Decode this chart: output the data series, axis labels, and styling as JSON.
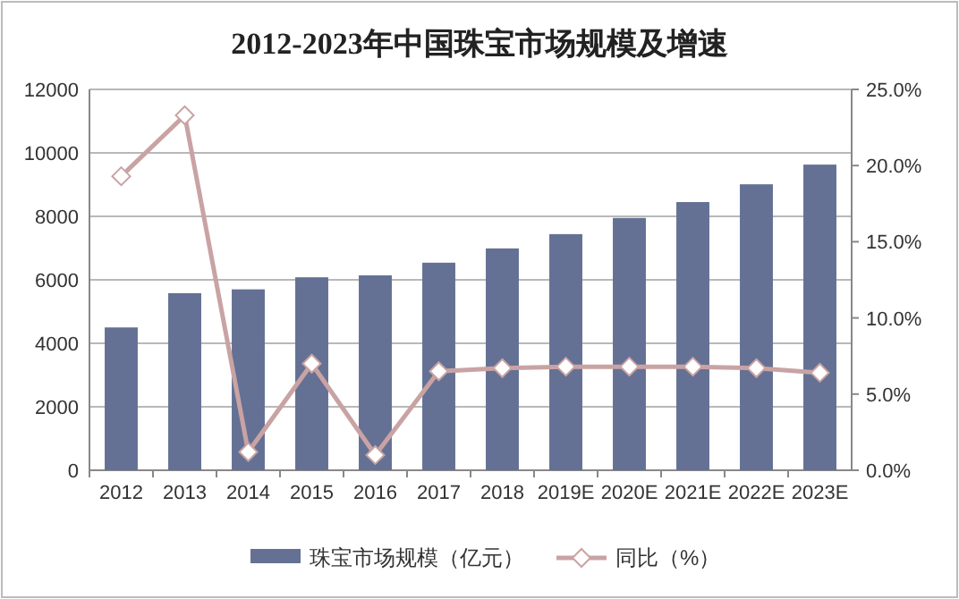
{
  "chart_data": {
    "type": "bar",
    "title": "2012-2023年中国珠宝市场规模及增速",
    "categories": [
      "2012",
      "2013",
      "2014",
      "2015",
      "2016",
      "2017",
      "2018",
      "2019E",
      "2020E",
      "2021E",
      "2022E",
      "2023E"
    ],
    "series": [
      {
        "name": "珠宝市场规模（亿元）",
        "color": "#647194",
        "values": [
          4500,
          5580,
          5700,
          6080,
          6140,
          6540,
          6990,
          7440,
          7950,
          8450,
          9010,
          9630
        ]
      },
      {
        "name": "同比（%）",
        "type": "line",
        "axis": "y2",
        "color": "#c9a3a3",
        "marker": "diamond",
        "values": [
          19.3,
          23.3,
          1.2,
          7.0,
          1.0,
          6.5,
          6.7,
          6.8,
          6.8,
          6.8,
          6.7,
          6.4
        ]
      }
    ],
    "ylim": [
      0,
      12000
    ],
    "yticks": [
      0,
      2000,
      4000,
      6000,
      8000,
      10000,
      12000
    ],
    "y2lim": [
      0,
      25
    ],
    "y2ticks": [
      {
        "value": 0,
        "label": "0.0%"
      },
      {
        "value": 5,
        "label": "5.0%"
      },
      {
        "value": 10,
        "label": "10.0%"
      },
      {
        "value": 15,
        "label": "15.0%"
      },
      {
        "value": 20,
        "label": "20.0%"
      },
      {
        "value": 25,
        "label": "25.0%"
      }
    ],
    "grid": "y",
    "legend": "bottom"
  }
}
